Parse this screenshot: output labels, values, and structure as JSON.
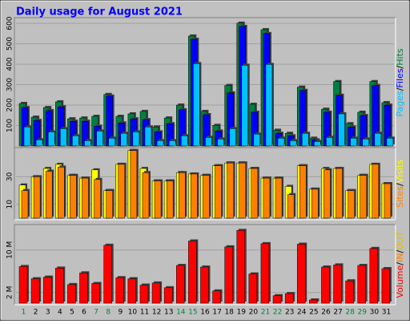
{
  "chart_data": [
    {
      "type": "bar",
      "title": "Daily usage for August 2021",
      "ylim": [
        0,
        620
      ],
      "yticks": [
        100,
        200,
        300,
        400,
        500,
        600
      ],
      "legend_separator": "/",
      "series": [
        {
          "name": "Hits",
          "color": "#008040",
          "values": [
            208,
            141,
            188,
            216,
            133,
            137,
            145,
            252,
            145,
            157,
            169,
            93,
            137,
            200,
            538,
            169,
            101,
            296,
            601,
            204,
            569,
            77,
            62,
            288,
            38,
            180,
            315,
            109,
            165,
            315,
            212
          ]
        },
        {
          "name": "Files",
          "color": "#0000ff",
          "values": [
            188,
            125,
            173,
            192,
            121,
            121,
            97,
            244,
            113,
            133,
            129,
            69,
            109,
            177,
            522,
            153,
            73,
            260,
            585,
            165,
            550,
            62,
            50,
            272,
            30,
            165,
            248,
            93,
            149,
            296,
            200
          ]
        },
        {
          "name": "Pages",
          "color": "#00c0ff",
          "values": [
            93,
            30,
            69,
            85,
            50,
            26,
            73,
            38,
            62,
            69,
            93,
            26,
            26,
            50,
            403,
            42,
            34,
            85,
            395,
            58,
            399,
            38,
            26,
            62,
            22,
            42,
            157,
            38,
            34,
            62,
            38
          ]
        }
      ]
    },
    {
      "type": "bar",
      "ylim": [
        0,
        50
      ],
      "yticks": [
        10,
        30
      ],
      "legend_separator": "/",
      "series": [
        {
          "name": "Visits",
          "color": "#ffff00",
          "values": [
            24,
            30,
            36,
            39,
            31,
            29,
            35,
            20,
            39,
            49,
            36,
            27,
            27,
            33,
            32,
            31,
            38,
            40,
            40,
            36,
            29,
            29,
            23,
            38,
            21,
            36,
            36,
            20,
            31,
            39,
            25
          ]
        },
        {
          "name": "Sites",
          "color": "#ff8000",
          "values": [
            20,
            30,
            34,
            37,
            31,
            29,
            28,
            20,
            39,
            49,
            33,
            27,
            27,
            33,
            32,
            31,
            38,
            40,
            40,
            36,
            29,
            29,
            17,
            38,
            21,
            35,
            36,
            20,
            31,
            39,
            25
          ]
        }
      ]
    },
    {
      "type": "bar",
      "ylim": [
        0,
        14.5
      ],
      "yticks": [
        {
          "value": 2,
          "label": "2 M"
        },
        {
          "value": 10,
          "label": "10 M"
        }
      ],
      "legend_separator": "/",
      "categories": [
        "1",
        "2",
        "3",
        "4",
        "5",
        "6",
        "7",
        "8",
        "9",
        "10",
        "11",
        "12",
        "13",
        "14",
        "15",
        "16",
        "17",
        "18",
        "19",
        "20",
        "21",
        "22",
        "23",
        "24",
        "25",
        "26",
        "27",
        "28",
        "29",
        "30",
        "31"
      ],
      "weekend": [
        true,
        false,
        false,
        false,
        false,
        false,
        true,
        true,
        false,
        false,
        false,
        false,
        false,
        true,
        true,
        false,
        false,
        false,
        false,
        false,
        true,
        true,
        false,
        false,
        false,
        false,
        false,
        true,
        true,
        false,
        false
      ],
      "weekend_color": "#008040",
      "series": [
        {
          "name": "Volume",
          "color": "#ff0000",
          "values": [
            6.9,
            4.6,
            4.9,
            6.6,
            3.5,
            5.7,
            3.7,
            10.9,
            4.8,
            4.6,
            3.4,
            3.8,
            2.9,
            7.1,
            11.7,
            6.8,
            2.3,
            10.6,
            13.7,
            5.5,
            11.2,
            1.4,
            1.8,
            11.1,
            0.6,
            6.8,
            7.2,
            4.2,
            7.1,
            10.3,
            6.5
          ]
        }
      ],
      "extra_legend": [
        {
          "text": "IN",
          "color": "#ff8000"
        },
        {
          "text": "OUT",
          "color": "#e0c000"
        }
      ]
    }
  ]
}
